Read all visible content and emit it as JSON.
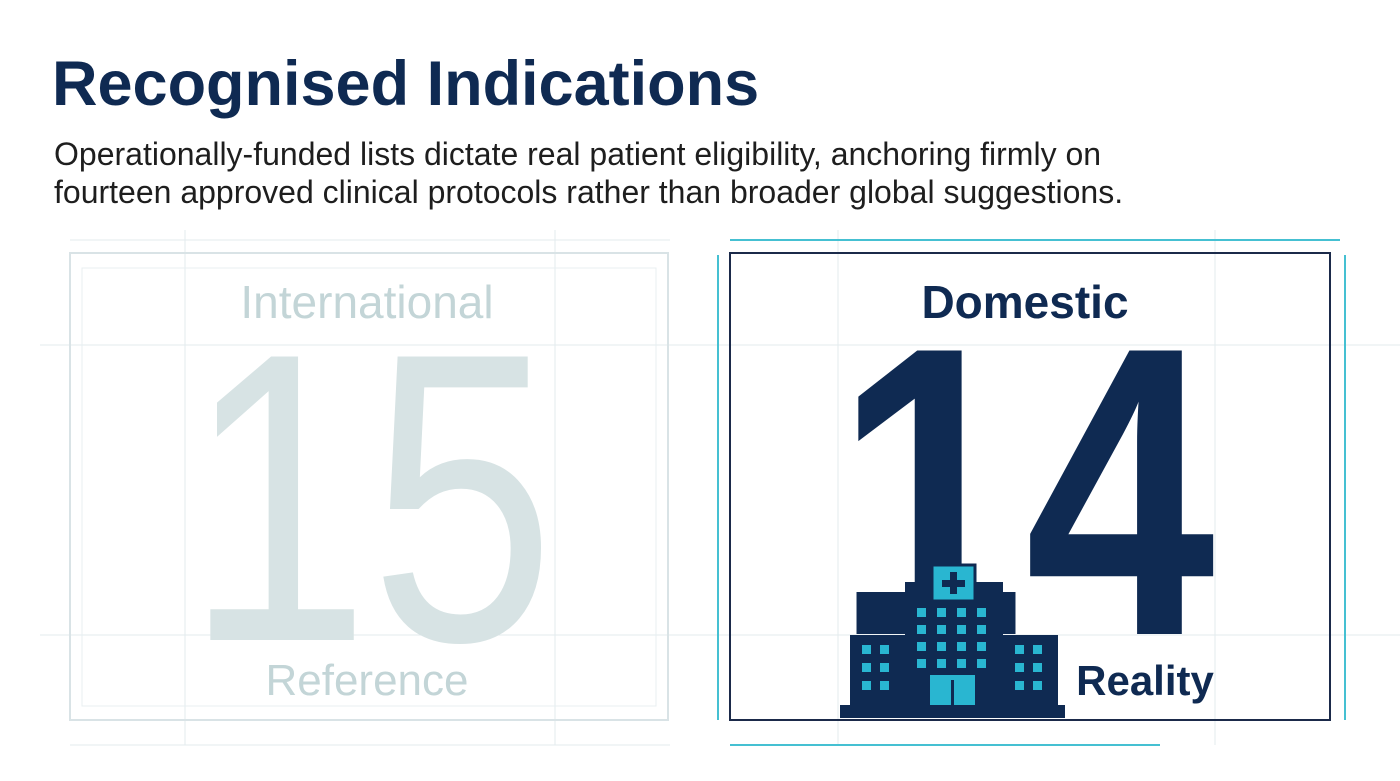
{
  "title": "Recognised Indications",
  "subtitle": [
    "Operationally-funded lists dictate real patient eligibility, anchoring firmly on",
    "fourteen approved clinical protocols rather than broader global suggestions."
  ],
  "panels": [
    {
      "top_label": "International",
      "number": 15,
      "bottom_label": "Reference"
    },
    {
      "top_label": "Domestic",
      "number": 14,
      "bottom_label": "Reality"
    }
  ]
}
